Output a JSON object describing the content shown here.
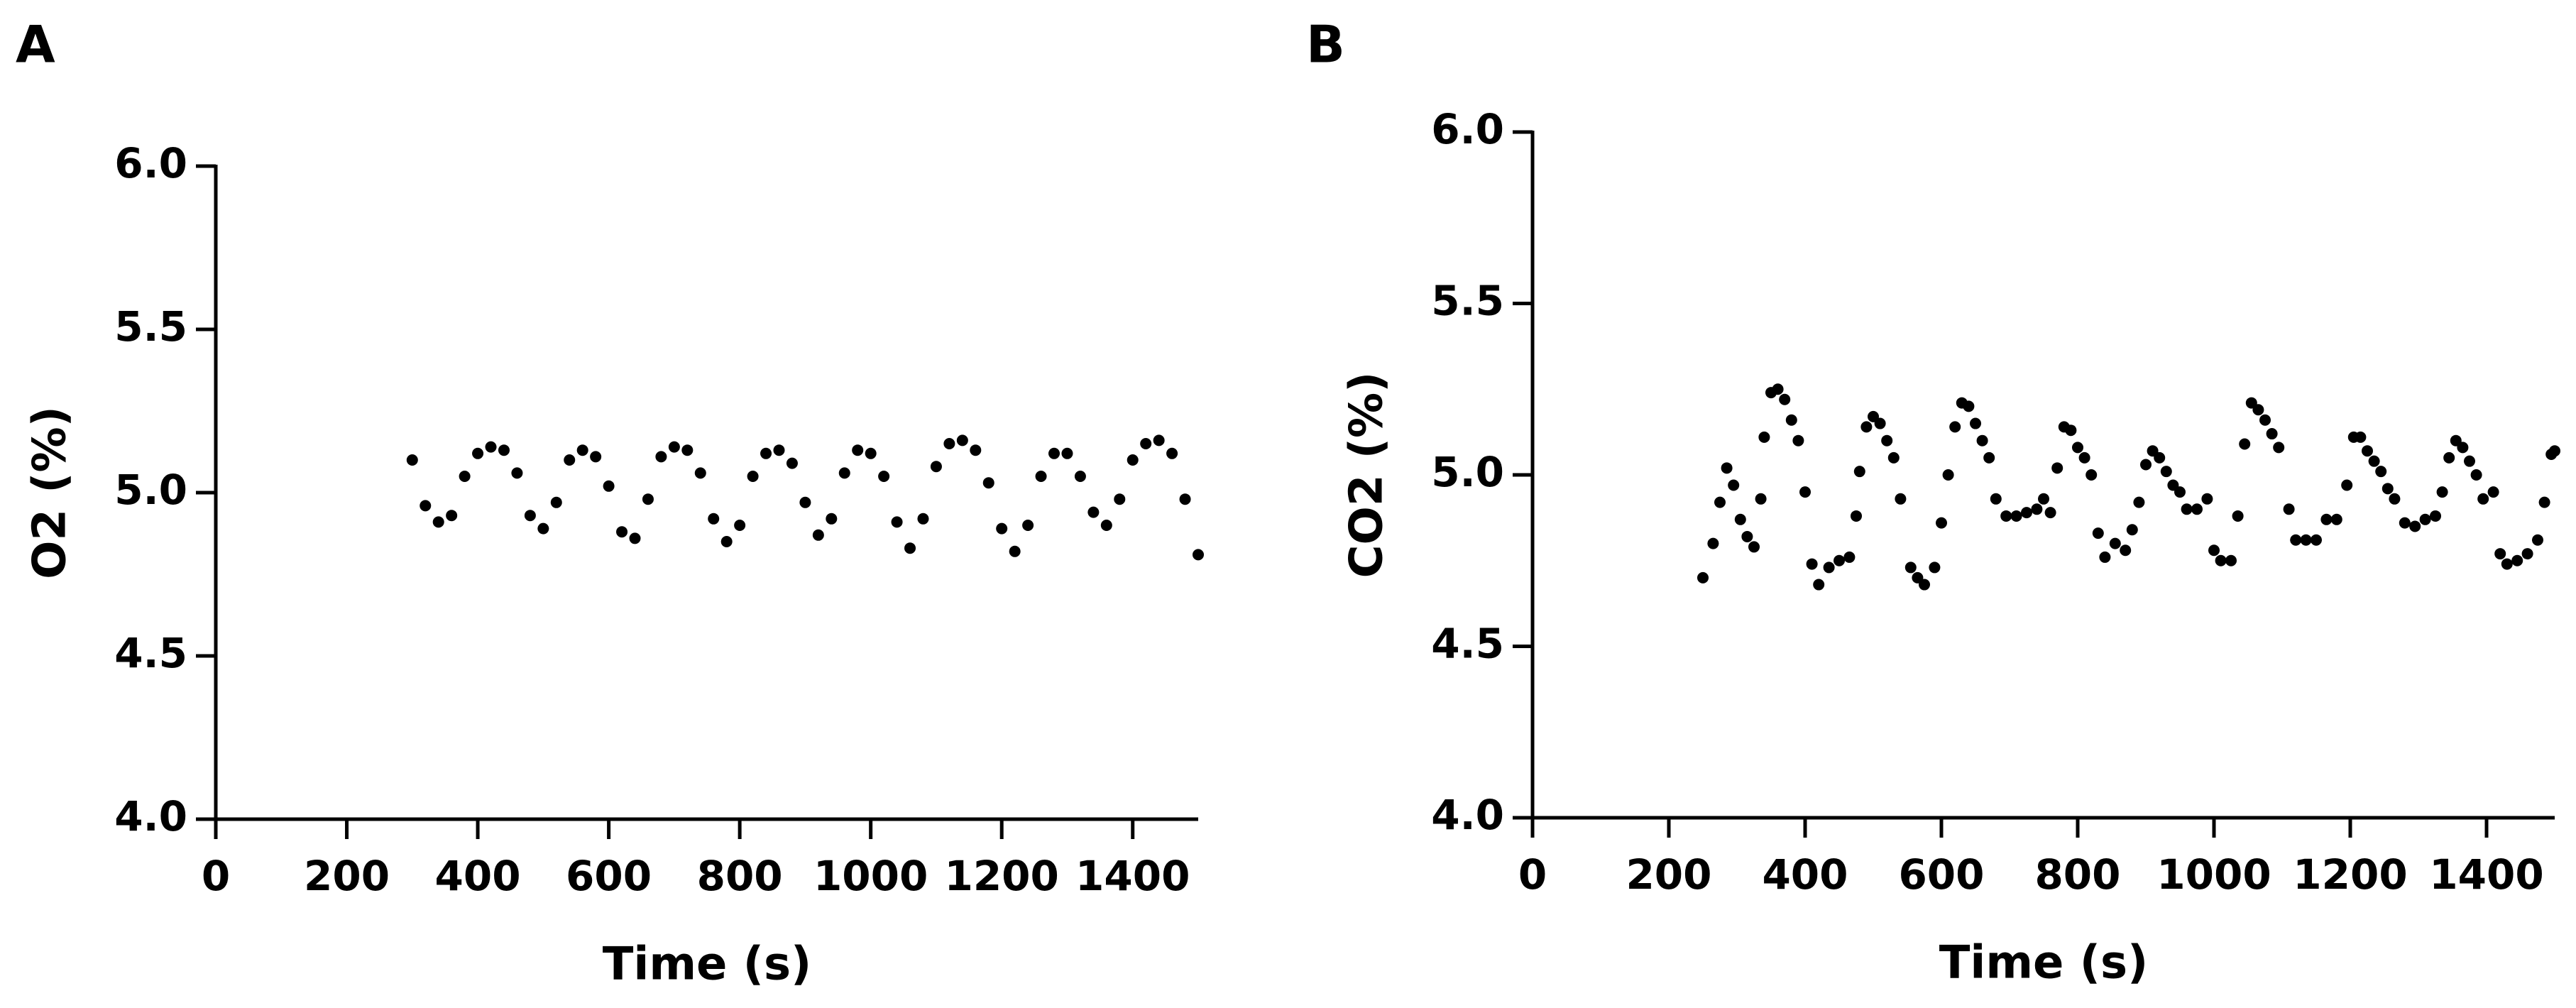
{
  "chart_data": [
    {
      "type": "scatter",
      "label": "A",
      "x_label": "Time (s)",
      "y_label": "O2 (%)",
      "color": "#000000",
      "xlim": [
        0,
        1500
      ],
      "ylim": [
        4,
        6
      ],
      "xticks": [
        0,
        200,
        400,
        600,
        800,
        1000,
        1200,
        1400
      ],
      "yticks": [
        {
          "value": 4,
          "label": "4.0"
        },
        4.5,
        {
          "value": 5,
          "label": "5.0"
        },
        5.5,
        {
          "value": 6,
          "label": "6.0"
        }
      ],
      "x": [
        300,
        320,
        340,
        360,
        380,
        400,
        420,
        440,
        460,
        480,
        500,
        520,
        540,
        560,
        580,
        600,
        620,
        640,
        660,
        680,
        700,
        720,
        740,
        760,
        780,
        800,
        820,
        840,
        860,
        880,
        900,
        920,
        940,
        960,
        980,
        1000,
        1020,
        1040,
        1060,
        1080,
        1100,
        1120,
        1140,
        1160,
        1180,
        1200,
        1220,
        1240,
        1260,
        1280,
        1300,
        1320,
        1340,
        1360,
        1380,
        1400,
        1420,
        1440,
        1460,
        1480,
        1500
      ],
      "values": [
        5.1,
        4.96,
        4.91,
        4.93,
        5.05,
        5.12,
        5.14,
        5.13,
        5.06,
        4.93,
        4.89,
        4.97,
        5.1,
        5.13,
        5.11,
        5.02,
        4.88,
        4.86,
        4.98,
        5.11,
        5.14,
        5.13,
        5.06,
        4.92,
        4.85,
        4.9,
        5.05,
        5.12,
        5.13,
        5.09,
        4.97,
        4.87,
        4.92,
        5.06,
        5.13,
        5.12,
        5.05,
        4.91,
        4.83,
        4.92,
        5.08,
        5.15,
        5.16,
        5.13,
        5.03,
        4.89,
        4.82,
        4.9,
        5.05,
        5.12,
        5.12,
        5.05,
        4.94,
        4.9,
        4.98,
        5.1,
        5.15,
        5.16,
        5.12,
        4.98,
        4.81
      ]
    },
    {
      "type": "scatter",
      "label": "B",
      "x_label": "Time (s)",
      "y_label": "CO2 (%)",
      "color": "#000000",
      "xlim": [
        0,
        1500
      ],
      "ylim": [
        4,
        6
      ],
      "xticks": [
        0,
        200,
        400,
        600,
        800,
        1000,
        1200,
        1400
      ],
      "yticks": [
        {
          "value": 4,
          "label": "4.0"
        },
        4.5,
        {
          "value": 5,
          "label": "5.0"
        },
        5.5,
        {
          "value": 6,
          "label": "6.0"
        }
      ],
      "x": [
        250,
        265,
        275,
        285,
        295,
        305,
        315,
        325,
        335,
        340,
        350,
        360,
        370,
        380,
        390,
        400,
        410,
        420,
        435,
        450,
        465,
        475,
        480,
        490,
        500,
        510,
        520,
        530,
        540,
        555,
        565,
        575,
        590,
        600,
        610,
        620,
        630,
        640,
        650,
        660,
        670,
        680,
        695,
        710,
        725,
        740,
        750,
        760,
        770,
        780,
        790,
        800,
        810,
        820,
        830,
        840,
        855,
        870,
        880,
        890,
        900,
        910,
        920,
        930,
        940,
        950,
        960,
        975,
        990,
        1000,
        1010,
        1025,
        1035,
        1045,
        1055,
        1065,
        1075,
        1085,
        1095,
        1110,
        1120,
        1135,
        1150,
        1165,
        1180,
        1195,
        1205,
        1215,
        1225,
        1235,
        1245,
        1255,
        1265,
        1280,
        1295,
        1310,
        1325,
        1335,
        1345,
        1355,
        1365,
        1375,
        1385,
        1395,
        1410,
        1420,
        1430,
        1445,
        1460,
        1475,
        1485,
        1495,
        1500
      ],
      "values": [
        4.7,
        4.8,
        4.92,
        5.02,
        4.97,
        4.87,
        4.82,
        4.79,
        4.93,
        5.11,
        5.24,
        5.25,
        5.22,
        5.16,
        5.1,
        4.95,
        4.74,
        4.68,
        4.73,
        4.75,
        4.76,
        4.88,
        5.01,
        5.14,
        5.17,
        5.15,
        5.1,
        5.05,
        4.93,
        4.73,
        4.7,
        4.68,
        4.73,
        4.86,
        5.0,
        5.14,
        5.21,
        5.2,
        5.15,
        5.1,
        5.05,
        4.93,
        4.88,
        4.88,
        4.89,
        4.9,
        4.93,
        4.89,
        5.02,
        5.14,
        5.13,
        5.08,
        5.05,
        5.0,
        4.83,
        4.76,
        4.8,
        4.78,
        4.84,
        4.92,
        5.03,
        5.07,
        5.05,
        5.01,
        4.97,
        4.95,
        4.9,
        4.9,
        4.93,
        4.78,
        4.75,
        4.75,
        4.88,
        5.09,
        5.21,
        5.19,
        5.16,
        5.12,
        5.08,
        4.9,
        4.81,
        4.81,
        4.81,
        4.87,
        4.87,
        4.97,
        5.11,
        5.11,
        5.07,
        5.04,
        5.01,
        4.96,
        4.93,
        4.86,
        4.85,
        4.87,
        4.88,
        4.95,
        5.05,
        5.1,
        5.08,
        5.04,
        5.0,
        4.93,
        4.95,
        4.77,
        4.74,
        4.75,
        4.77,
        4.81,
        4.92,
        5.06,
        5.07
      ]
    }
  ]
}
